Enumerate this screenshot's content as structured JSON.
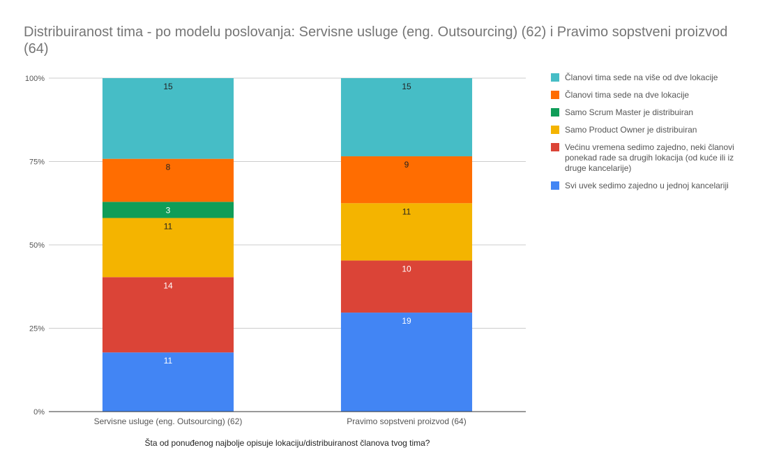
{
  "chart_data": {
    "type": "bar",
    "stacked": true,
    "normalized": true,
    "title": "Distribuiranost tima - po modelu poslovanja: Servisne usluge (eng. Outsourcing) (62) i Pravimo sopstveni proizvod (64)",
    "xlabel": "Šta od ponuđenog najbolje opisuje lokaciju/distribuiranost članova tvog tima?",
    "ylabel": "",
    "ylim": [
      0,
      100
    ],
    "yticks": [
      "0%",
      "25%",
      "50%",
      "75%",
      "100%"
    ],
    "categories": [
      "Servisne usluge (eng. Outsourcing) (62)",
      "Pravimo sopstveni proizvod (64)"
    ],
    "series": [
      {
        "name": "Svi uvek sedimo zajedno u jednoj kancelariji",
        "color": "#4285f4",
        "values": [
          11,
          19
        ]
      },
      {
        "name": "Većinu vremena sedimo zajedno, neki članovi ponekad rade sa drugih lokacija (od kuće ili iz druge kancelarije)",
        "color": "#db4437",
        "values": [
          14,
          10
        ]
      },
      {
        "name": "Samo Product Owner je distribuiran",
        "color": "#f4b400",
        "values": [
          11,
          11
        ]
      },
      {
        "name": "Samo Scrum Master je distribuiran",
        "color": "#0f9d58",
        "values": [
          3,
          0
        ]
      },
      {
        "name": "Članovi tima sede na dve lokacije",
        "color": "#ff6d01",
        "values": [
          8,
          9
        ]
      },
      {
        "name": "Članovi tima sede na više od dve lokacije",
        "color": "#46bdc6",
        "values": [
          15,
          15
        ]
      }
    ],
    "legend": {
      "position": "right",
      "order": [
        "Članovi tima sede na više od dve lokacije",
        "Članovi tima sede na dve lokacije",
        "Samo Scrum Master je distribuiran",
        "Samo Product Owner je distribuiran",
        "Većinu vremena sedimo zajedno, neki članovi ponekad rade sa drugih lokacija (od kuće ili iz druge kancelarije)",
        "Svi uvek sedimo zajedno u jednoj kancelariji"
      ]
    },
    "grid": true
  }
}
